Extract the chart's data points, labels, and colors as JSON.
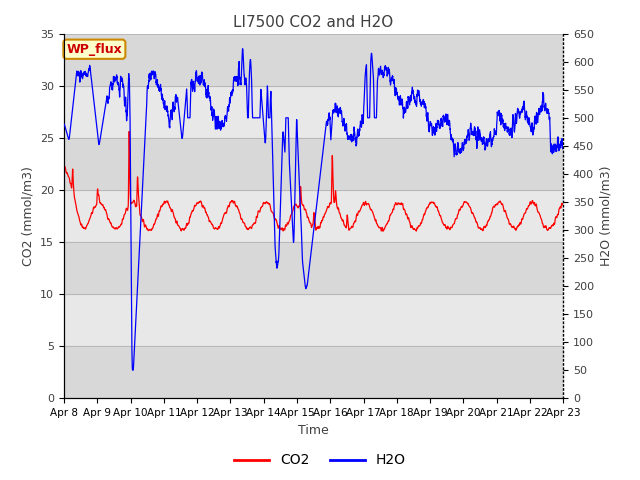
{
  "title": "LI7500 CO2 and H2O",
  "xlabel": "Time",
  "ylabel_left": "CO2 (mmol/m3)",
  "ylabel_right": "H2O (mmol/m3)",
  "ylim_left": [
    0,
    35
  ],
  "ylim_right": [
    0,
    650
  ],
  "yticks_left": [
    0,
    5,
    10,
    15,
    20,
    25,
    30,
    35
  ],
  "yticks_right": [
    0,
    50,
    100,
    150,
    200,
    250,
    300,
    350,
    400,
    450,
    500,
    550,
    600,
    650
  ],
  "xtick_labels": [
    "Apr 8",
    "Apr 9",
    "Apr 10",
    "Apr 11",
    "Apr 12",
    "Apr 13",
    "Apr 14",
    "Apr 15",
    "Apr 16",
    "Apr 17",
    "Apr 18",
    "Apr 19",
    "Apr 20",
    "Apr 21",
    "Apr 22",
    "Apr 23"
  ],
  "xtick_positions": [
    0,
    1,
    2,
    3,
    4,
    5,
    6,
    7,
    8,
    9,
    10,
    11,
    12,
    13,
    14,
    15
  ],
  "legend_labels": [
    "CO2",
    "H2O"
  ],
  "co2_color": "#ff0000",
  "h2o_color": "#0000ff",
  "background_color": "#ffffff",
  "plot_bg_dark": "#d8d8d8",
  "plot_bg_light": "#e8e8e8",
  "annotation_text": "WP_flux",
  "annotation_bg": "#ffffcc",
  "annotation_border": "#cc8800",
  "annotation_text_color": "#cc0000",
  "title_color": "#404040",
  "axis_label_color": "#404040",
  "figsize": [
    6.4,
    4.8
  ],
  "dpi": 100
}
